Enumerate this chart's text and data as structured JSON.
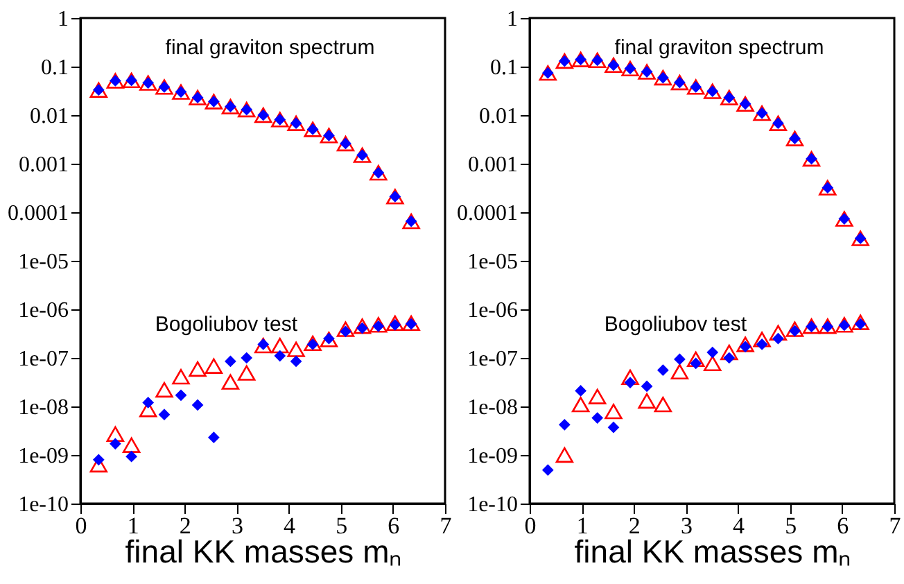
{
  "chart_data": [
    {
      "type": "scatter",
      "xlabel": "final KK masses mₙ",
      "annotations": [
        "final graviton spectrum",
        "Bogoliubov test"
      ],
      "log": "y",
      "xlim": [
        0,
        7
      ],
      "xticks": [
        0,
        1,
        2,
        3,
        4,
        5,
        6,
        7
      ],
      "ylim": [
        1e-10,
        1
      ],
      "yticks": [
        {
          "value": 1e-10,
          "label": "1e-10"
        },
        {
          "value": 1e-09,
          "label": "1e-09"
        },
        {
          "value": 1e-08,
          "label": "1e-08"
        },
        {
          "value": 1e-07,
          "label": "1e-07"
        },
        {
          "value": 1e-06,
          "label": "1e-06"
        },
        {
          "value": 1e-05,
          "label": "1e-05"
        },
        0.0001,
        0.001,
        0.01,
        0.1,
        1
      ],
      "grid": false,
      "x": [
        0.35,
        0.67,
        0.98,
        1.3,
        1.61,
        1.93,
        2.25,
        2.56,
        2.88,
        3.19,
        3.51,
        3.83,
        4.14,
        4.46,
        4.77,
        5.09,
        5.41,
        5.72,
        6.04,
        6.35
      ],
      "series": [
        {
          "color": "#ff0000",
          "marker": "triangle",
          "values": [
            0.033,
            0.051,
            0.052,
            0.046,
            0.038,
            0.03,
            0.023,
            0.019,
            0.015,
            0.013,
            0.01,
            0.0081,
            0.0068,
            0.0051,
            0.0038,
            0.0026,
            0.0015,
            0.00065,
            0.00021,
            6.5e-05
          ]
        },
        {
          "color": "#0000ff",
          "marker": "diamond",
          "values": [
            0.033,
            0.051,
            0.052,
            0.046,
            0.038,
            0.03,
            0.023,
            0.019,
            0.015,
            0.013,
            0.01,
            0.0081,
            0.0068,
            0.0051,
            0.0038,
            0.0026,
            0.0015,
            0.00065,
            0.00021,
            6.5e-05
          ]
        },
        {
          "color": "#ff0000",
          "marker": "triangle",
          "values": [
            6.3e-10,
            2.7e-09,
            1.6e-09,
            8.7e-09,
            2.2e-08,
            4.1e-08,
            5.9e-08,
            6.8e-08,
            3.2e-08,
            4.9e-08,
            1.8e-07,
            1.8e-07,
            1.5e-07,
            2e-07,
            2.4e-07,
            3.9e-07,
            4.5e-07,
            4.8e-07,
            5.2e-07,
            5.2e-07
          ]
        },
        {
          "color": "#0000ff",
          "marker": "diamond",
          "values": [
            8e-10,
            1.7e-09,
            9.3e-10,
            1.2e-08,
            6.8e-09,
            1.7e-08,
            1.07e-08,
            2.3e-09,
            8.5e-08,
            1e-07,
            1.9e-07,
            1.1e-07,
            8.5e-08,
            1.9e-07,
            2.5e-07,
            3.5e-07,
            4.1e-07,
            4.5e-07,
            4.8e-07,
            5e-07
          ]
        }
      ]
    },
    {
      "type": "scatter",
      "xlabel": "final KK masses mₙ",
      "annotations": [
        "final graviton spectrum",
        "Bogoliubov test"
      ],
      "log": "y",
      "xlim": [
        0,
        7
      ],
      "xticks": [
        0,
        1,
        2,
        3,
        4,
        5,
        6,
        7
      ],
      "ylim": [
        1e-10,
        1
      ],
      "yticks": [
        {
          "value": 1e-10,
          "label": "1e-10"
        },
        {
          "value": 1e-09,
          "label": "1e-09"
        },
        {
          "value": 1e-08,
          "label": "1e-08"
        },
        {
          "value": 1e-07,
          "label": "1e-07"
        },
        {
          "value": 1e-06,
          "label": "1e-06"
        },
        {
          "value": 1e-05,
          "label": "1e-05"
        },
        0.0001,
        0.001,
        0.01,
        0.1,
        1
      ],
      "grid": false,
      "x": [
        0.35,
        0.67,
        0.98,
        1.3,
        1.61,
        1.93,
        2.25,
        2.56,
        2.88,
        3.19,
        3.51,
        3.83,
        4.14,
        4.46,
        4.77,
        5.09,
        5.41,
        5.72,
        6.04,
        6.35
      ],
      "series": [
        {
          "color": "#ff0000",
          "marker": "triangle",
          "values": [
            0.074,
            0.13,
            0.14,
            0.135,
            0.107,
            0.091,
            0.078,
            0.059,
            0.047,
            0.038,
            0.031,
            0.023,
            0.017,
            0.011,
            0.0068,
            0.0033,
            0.00126,
            0.00032,
            7.3e-05,
            2.9e-05
          ]
        },
        {
          "color": "#0000ff",
          "marker": "diamond",
          "values": [
            0.074,
            0.13,
            0.14,
            0.135,
            0.107,
            0.091,
            0.078,
            0.059,
            0.047,
            0.038,
            0.031,
            0.023,
            0.017,
            0.011,
            0.0068,
            0.0033,
            0.00126,
            0.00032,
            7.3e-05,
            2.9e-05
          ]
        },
        {
          "color": "#ff0000",
          "marker": "triangle",
          "values": [
            null,
            1e-09,
            1.1e-08,
            1.6e-08,
            7.9e-09,
            4e-08,
            1.3e-08,
            1.1e-08,
            5.2e-08,
            9.4e-08,
            7.7e-08,
            1.3e-07,
            1.9e-07,
            2.4e-07,
            3.3e-07,
            3.9e-07,
            4.5e-07,
            4.5e-07,
            4.8e-07,
            5.4e-07
          ]
        },
        {
          "color": "#0000ff",
          "marker": "diamond",
          "values": [
            4.9e-10,
            4.2e-09,
            2.1e-08,
            5.8e-09,
            3.7e-09,
            3.1e-08,
            2.6e-08,
            5.6e-08,
            9.4e-08,
            7.7e-08,
            1.3e-07,
            1e-07,
            1.7e-07,
            1.9e-07,
            2.5e-07,
            3.6e-07,
            4.4e-07,
            4.4e-07,
            4.7e-07,
            5e-07
          ]
        }
      ]
    }
  ]
}
